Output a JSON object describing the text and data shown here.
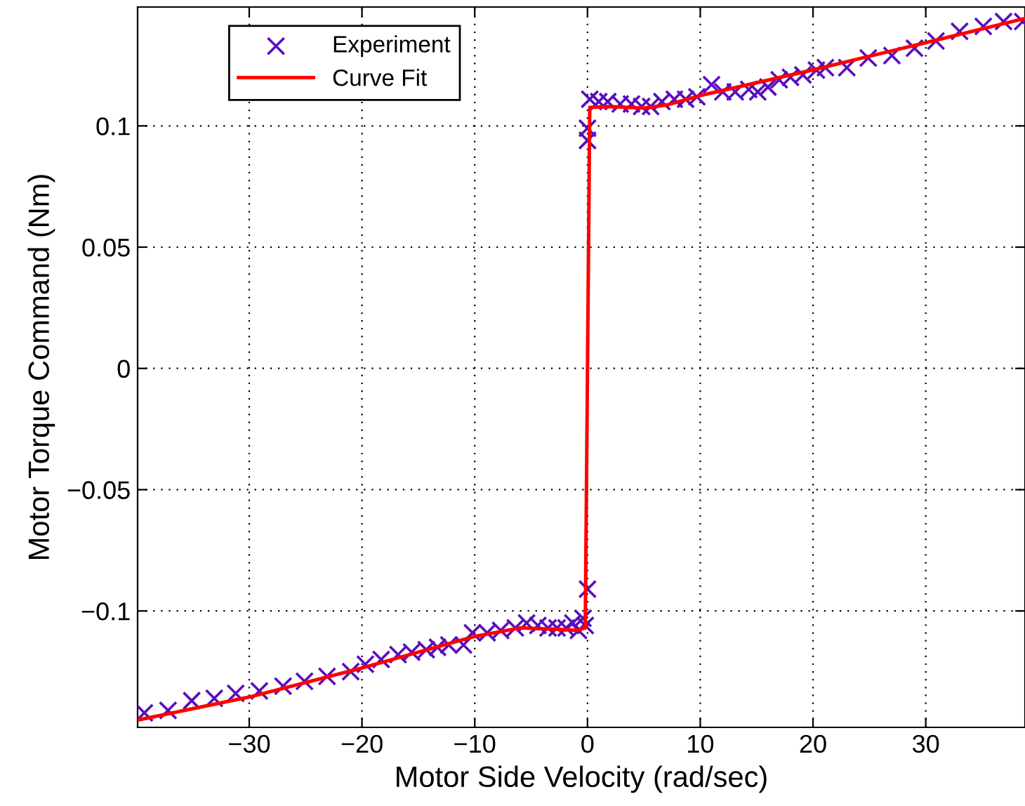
{
  "chart_data": {
    "type": "scatter",
    "xlabel": "Motor Side Velocity (rad/sec)",
    "ylabel": "Motor Torque Command (Nm)",
    "xlim": [
      -39.9,
      38.8
    ],
    "ylim": [
      -0.148,
      0.149
    ],
    "xticks": [
      {
        "value": -30,
        "label": "−30"
      },
      {
        "value": -20,
        "label": "−20"
      },
      {
        "value": -10,
        "label": "−10"
      },
      0,
      10,
      20,
      30
    ],
    "yticks": [
      {
        "value": -0.1,
        "label": "−0.1"
      },
      {
        "value": -0.05,
        "label": "−0.05"
      },
      0,
      0.05,
      0.1
    ],
    "grid": true,
    "legend": "top left",
    "series": [
      {
        "name": "Experiment",
        "marker": "cross",
        "color": "#5a0fbe",
        "x": [
          -39.3,
          -37.2,
          -35.1,
          -33.1,
          -31.2,
          -29.1,
          -27.0,
          -25.1,
          -23.1,
          -21.0,
          -19.7,
          -18.3,
          -16.8,
          -15.6,
          -14.3,
          -13.3,
          -12.3,
          -11.0,
          -10.2,
          -8.9,
          -7.7,
          -6.4,
          -5.4,
          -4.4,
          -3.5,
          -2.7,
          -1.9,
          -1.3,
          -0.8,
          -0.4,
          -0.2,
          0,
          0,
          0,
          0.2,
          1.0,
          1.8,
          2.9,
          3.9,
          4.8,
          5.6,
          6.6,
          7.7,
          8.7,
          9.7,
          11.0,
          12.0,
          13.1,
          14.3,
          15.1,
          16.0,
          17.0,
          18.0,
          19.1,
          20.3,
          21.1,
          23.0,
          24.9,
          27.0,
          29.0,
          30.9,
          33.0,
          35.1,
          36.9,
          38.6
        ],
        "values": [
          -0.142,
          -0.141,
          -0.137,
          -0.136,
          -0.134,
          -0.133,
          -0.131,
          -0.129,
          -0.127,
          -0.125,
          -0.122,
          -0.12,
          -0.118,
          -0.117,
          -0.116,
          -0.115,
          -0.114,
          -0.114,
          -0.109,
          -0.109,
          -0.108,
          -0.107,
          -0.105,
          -0.106,
          -0.107,
          -0.107,
          -0.107,
          -0.105,
          -0.108,
          -0.103,
          -0.106,
          -0.091,
          0.094,
          0.099,
          0.111,
          0.11,
          0.11,
          0.109,
          0.109,
          0.108,
          0.108,
          0.11,
          0.111,
          0.111,
          0.112,
          0.117,
          0.114,
          0.114,
          0.115,
          0.114,
          0.116,
          0.119,
          0.12,
          0.121,
          0.123,
          0.124,
          0.124,
          0.128,
          0.129,
          0.132,
          0.135,
          0.139,
          0.141,
          0.143,
          0.143
        ]
      },
      {
        "name": "Curve Fit",
        "type": "line",
        "marker": "none",
        "line_style": "solid",
        "color": "#ff0000",
        "x": [
          -39.9,
          -30,
          -20,
          -10,
          -6,
          -3,
          -1,
          -0.2,
          0,
          0.2,
          2,
          5,
          7,
          10,
          20,
          30,
          38.8
        ],
        "values": [
          -0.145,
          -0.1355,
          -0.1235,
          -0.1105,
          -0.107,
          -0.1075,
          -0.108,
          -0.107,
          0,
          0.1076,
          0.108,
          0.1073,
          0.1086,
          0.1125,
          0.1231,
          0.1343,
          0.1443
        ]
      }
    ]
  }
}
